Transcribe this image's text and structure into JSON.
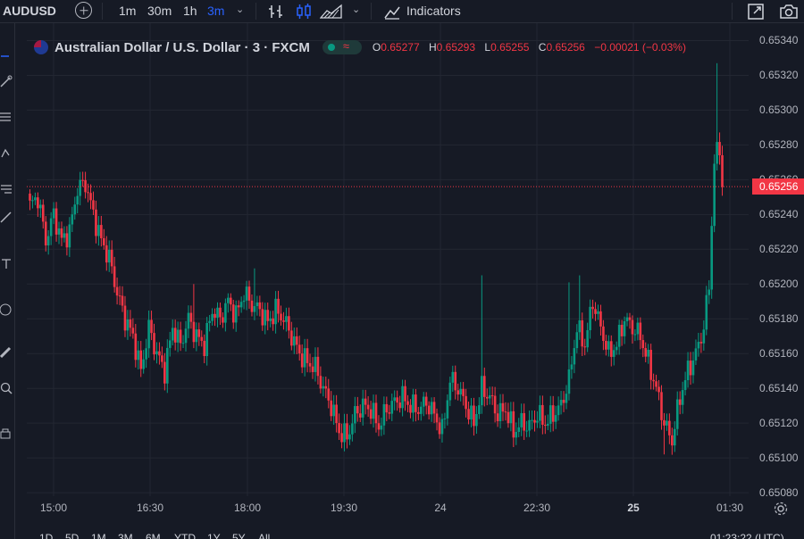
{
  "toolbar": {
    "symbol": "AUDUSD",
    "intervals": [
      "1m",
      "30m",
      "1h",
      "3m"
    ],
    "active_interval": "3m",
    "indicators_label": "Indicators"
  },
  "legend": {
    "title": "Australian Dollar / U.S. Dollar · 3 · FXCM",
    "wave": "≈",
    "o_key": "O",
    "o_val": "0.65277",
    "h_key": "H",
    "h_val": "0.65293",
    "l_key": "L",
    "l_val": "0.65255",
    "c_key": "C",
    "c_val": "0.65256",
    "change": "−0.00021 (−0.03%)"
  },
  "bottom_bar": {
    "ranges": [
      "1D",
      "5D",
      "1M",
      "3M",
      "6M",
      "YTD",
      "1Y",
      "5Y",
      "All"
    ],
    "clock": "01:23:22 (UTC)"
  },
  "colors": {
    "up": "#089981",
    "down": "#f23645",
    "background": "#161a25",
    "grid": "#232732"
  },
  "chart_data": {
    "type": "candlestick",
    "symbol": "AUDUSD",
    "interval": "3m",
    "source": "FXCM",
    "current_price": "0.65256",
    "y_ticks": [
      "0.65340",
      "0.65320",
      "0.65300",
      "0.65280",
      "0.65260",
      "0.65240",
      "0.65220",
      "0.65200",
      "0.65180",
      "0.65160",
      "0.65140",
      "0.65120",
      "0.65100",
      "0.65080"
    ],
    "ylim": [
      0.65078,
      0.6535
    ],
    "x_ticks": [
      {
        "label": "15:00",
        "bold": false
      },
      {
        "label": "16:30",
        "bold": false
      },
      {
        "label": "18:00",
        "bold": false
      },
      {
        "label": "19:30",
        "bold": false
      },
      {
        "label": "24",
        "bold": false
      },
      {
        "label": "22:30",
        "bold": false
      },
      {
        "label": "25",
        "bold": true
      },
      {
        "label": "01:30",
        "bold": false
      }
    ],
    "path": [
      [
        0,
        0.65245
      ],
      [
        3,
        0.6525
      ],
      [
        6,
        0.65225
      ],
      [
        9,
        0.6524
      ],
      [
        12,
        0.65225
      ],
      [
        15,
        0.6523
      ],
      [
        18,
        0.65255
      ],
      [
        21,
        0.65258
      ],
      [
        24,
        0.6524
      ],
      [
        27,
        0.65225
      ],
      [
        30,
        0.65215
      ],
      [
        33,
        0.65195
      ],
      [
        36,
        0.6518
      ],
      [
        39,
        0.6517
      ],
      [
        42,
        0.6515
      ],
      [
        45,
        0.65175
      ],
      [
        48,
        0.6516
      ],
      [
        51,
        0.6515
      ],
      [
        54,
        0.65175
      ],
      [
        57,
        0.65165
      ],
      [
        60,
        0.6518
      ],
      [
        63,
        0.6517
      ],
      [
        66,
        0.65165
      ],
      [
        69,
        0.65185
      ],
      [
        72,
        0.6518
      ],
      [
        75,
        0.6519
      ],
      [
        78,
        0.65182
      ],
      [
        81,
        0.65195
      ],
      [
        84,
        0.65188
      ],
      [
        87,
        0.65185
      ],
      [
        90,
        0.65178
      ],
      [
        93,
        0.65185
      ],
      [
        96,
        0.6518
      ],
      [
        99,
        0.6517
      ],
      [
        102,
        0.6516
      ],
      [
        105,
        0.65155
      ],
      [
        108,
        0.65152
      ],
      [
        111,
        0.6514
      ],
      [
        114,
        0.6513
      ],
      [
        117,
        0.65115
      ],
      [
        120,
        0.65112
      ],
      [
        123,
        0.65125
      ],
      [
        126,
        0.6513
      ],
      [
        129,
        0.65128
      ],
      [
        132,
        0.65118
      ],
      [
        135,
        0.65128
      ],
      [
        138,
        0.65132
      ],
      [
        141,
        0.65135
      ],
      [
        144,
        0.6513
      ],
      [
        147,
        0.65128
      ],
      [
        150,
        0.65132
      ],
      [
        153,
        0.65125
      ],
      [
        156,
        0.65115
      ],
      [
        159,
        0.65145
      ],
      [
        162,
        0.6514
      ],
      [
        165,
        0.6513
      ],
      [
        168,
        0.6512
      ],
      [
        171,
        0.6514
      ],
      [
        174,
        0.65135
      ],
      [
        177,
        0.65125
      ],
      [
        180,
        0.65128
      ],
      [
        183,
        0.65115
      ],
      [
        186,
        0.6512
      ],
      [
        189,
        0.65118
      ],
      [
        192,
        0.65125
      ],
      [
        195,
        0.6512
      ],
      [
        198,
        0.65125
      ],
      [
        201,
        0.6513
      ],
      [
        204,
        0.65145
      ],
      [
        207,
        0.65175
      ],
      [
        210,
        0.65165
      ],
      [
        213,
        0.6519
      ],
      [
        216,
        0.65175
      ],
      [
        219,
        0.6516
      ],
      [
        222,
        0.65165
      ],
      [
        225,
        0.6518
      ],
      [
        228,
        0.65175
      ],
      [
        231,
        0.6517
      ],
      [
        234,
        0.65155
      ],
      [
        237,
        0.6514
      ],
      [
        240,
        0.6512
      ],
      [
        243,
        0.6511
      ],
      [
        246,
        0.65135
      ],
      [
        249,
        0.6515
      ],
      [
        252,
        0.6516
      ],
      [
        255,
        0.65175
      ],
      [
        257,
        0.652
      ],
      [
        259,
        0.6527
      ],
      [
        261,
        0.6528
      ],
      [
        262,
        0.65256
      ]
    ],
    "extreme_wicks": [
      [
        62,
        0.652
      ],
      [
        85,
        0.65209
      ],
      [
        171,
        0.65205
      ],
      [
        204,
        0.65201
      ],
      [
        208,
        0.65205
      ],
      [
        240,
        0.65102
      ],
      [
        260,
        0.65327
      ]
    ]
  }
}
